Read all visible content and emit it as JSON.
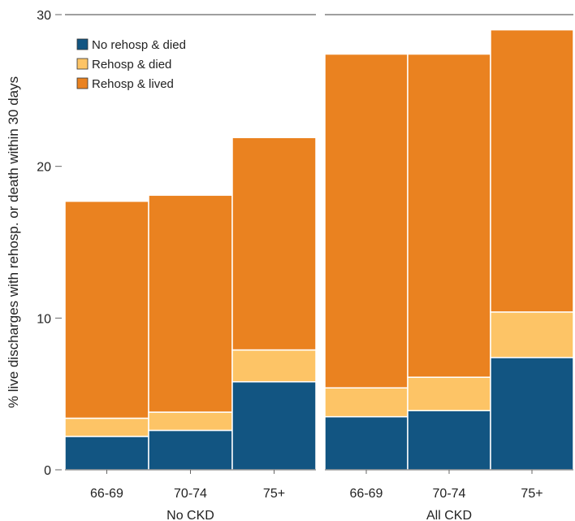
{
  "chart_data": {
    "type": "bar",
    "stacked": true,
    "ylabel": "% live discharges with rehosp. or death within 30 days",
    "ylim": [
      0,
      30
    ],
    "yticks": [
      0,
      10,
      20,
      30
    ],
    "grid": false,
    "legend_position": "top-left",
    "groups": [
      {
        "label": "No CKD",
        "categories": [
          "66-69",
          "70-74",
          "75+"
        ],
        "series": [
          {
            "name": "No rehosp & died",
            "values": [
              2.2,
              2.6,
              5.8
            ]
          },
          {
            "name": "Rehosp & died",
            "values": [
              1.2,
              1.2,
              2.1
            ]
          },
          {
            "name": "Rehosp & lived",
            "values": [
              14.3,
              14.3,
              14.0
            ]
          }
        ]
      },
      {
        "label": "All CKD",
        "categories": [
          "66-69",
          "70-74",
          "75+"
        ],
        "series": [
          {
            "name": "No rehosp & died",
            "values": [
              3.5,
              3.9,
              7.4
            ]
          },
          {
            "name": "Rehosp & died",
            "values": [
              1.9,
              2.2,
              3.0
            ]
          },
          {
            "name": "Rehosp & lived",
            "values": [
              22.0,
              21.3,
              18.6
            ]
          }
        ]
      }
    ],
    "legend": [
      {
        "name": "No rehosp & died",
        "color": "#125582"
      },
      {
        "name": "Rehosp & died",
        "color": "#fdc466"
      },
      {
        "name": "Rehosp & lived",
        "color": "#ea8220"
      }
    ],
    "colors": {
      "No rehosp & died": "#125582",
      "Rehosp & died": "#fdc466",
      "Rehosp & lived": "#ea8220"
    }
  }
}
